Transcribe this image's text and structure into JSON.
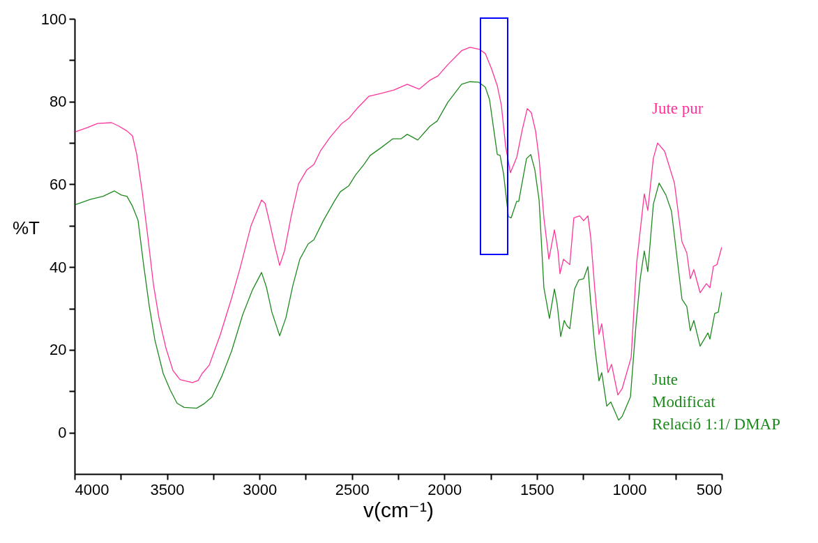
{
  "chart_data": {
    "type": "line",
    "xlabel": "v(cm⁻¹)",
    "ylabel": "%T",
    "xlim": [
      4000,
      500
    ],
    "ylim": [
      -10,
      100
    ],
    "xticks": [
      4000,
      {
        "value": 3750,
        "label": null
      },
      3500,
      {
        "value": 3250,
        "label": null
      },
      3000,
      {
        "value": 2750,
        "label": null
      },
      2500,
      {
        "value": 2250,
        "label": null
      },
      2000,
      {
        "value": 1750,
        "label": null
      },
      1500,
      {
        "value": 1250,
        "label": null
      },
      1000,
      {
        "value": 750,
        "label": null
      },
      500
    ],
    "yticks": [
      0,
      {
        "value": 10,
        "label": null
      },
      20,
      {
        "value": 30,
        "label": null
      },
      40,
      {
        "value": 50,
        "label": null
      },
      60,
      {
        "value": 70,
        "label": null
      },
      80,
      {
        "value": 90,
        "label": null
      },
      100
    ],
    "grid": false,
    "series": [
      {
        "name": "Jute pur",
        "color": "#ff3399",
        "x": [
          3996,
          3932,
          3876,
          3800,
          3762,
          3717,
          3687,
          3664,
          3634,
          3604,
          3574,
          3544,
          3506,
          3468,
          3430,
          3363,
          3332,
          3310,
          3272,
          3212,
          3151,
          3106,
          3046,
          2989,
          2970,
          2948,
          2918,
          2891,
          2865,
          2827,
          2789,
          2744,
          2706,
          2669,
          2616,
          2555,
          2518,
          2473,
          2408,
          2341,
          2273,
          2201,
          2137,
          2077,
          2035,
          1982,
          1907,
          1862,
          1809,
          1779,
          1745,
          1714,
          1692,
          1669,
          1643,
          1609,
          1579,
          1552,
          1530,
          1507,
          1488,
          1462,
          1435,
          1405,
          1386,
          1375,
          1356,
          1322,
          1300,
          1269,
          1247,
          1224,
          1209,
          1186,
          1164,
          1149,
          1115,
          1096,
          1062,
          1039,
          990,
          960,
          919,
          900,
          870,
          847,
          809,
          756,
          715,
          689,
          670,
          651,
          617,
          583,
          564,
          545,
          526,
          500
        ],
        "values": [
          72.7,
          73.7,
          74.7,
          74.9,
          74.1,
          72.9,
          71.7,
          67.2,
          58.1,
          47.3,
          35.9,
          27.8,
          20.4,
          15.0,
          12.8,
          12.1,
          12.6,
          14.3,
          16.3,
          23.7,
          32.5,
          39.6,
          50.0,
          56.2,
          55.4,
          51.3,
          45.3,
          40.4,
          43.9,
          52.7,
          60.1,
          63.5,
          64.8,
          68.2,
          71.5,
          74.7,
          75.9,
          78.3,
          81.3,
          82.0,
          82.8,
          84.2,
          83.0,
          85.2,
          86.2,
          88.9,
          92.3,
          93.1,
          92.6,
          91.6,
          87.9,
          83.8,
          79.1,
          69.2,
          62.8,
          66.5,
          73.2,
          78.3,
          77.3,
          72.9,
          66.3,
          51.9,
          41.9,
          49.0,
          43.9,
          38.4,
          41.9,
          40.6,
          51.9,
          52.4,
          51.2,
          52.4,
          47.3,
          34.3,
          23.7,
          26.3,
          14.5,
          16.5,
          9.1,
          10.6,
          18.2,
          41.1,
          57.7,
          53.7,
          66.3,
          70.0,
          68.0,
          60.3,
          46.1,
          43.4,
          37.2,
          39.4,
          33.8,
          36.0,
          35.0,
          40.2,
          40.6,
          44.8
        ]
      },
      {
        "name": "Jute Modificat Relació 1:1/ DMAP",
        "color": "#1e8a1e",
        "x": [
          3996,
          3913,
          3846,
          3785,
          3747,
          3717,
          3687,
          3657,
          3627,
          3596,
          3566,
          3521,
          3483,
          3446,
          3408,
          3340,
          3302,
          3257,
          3204,
          3151,
          3091,
          3038,
          2989,
          2963,
          2933,
          2891,
          2857,
          2820,
          2782,
          2737,
          2706,
          2654,
          2593,
          2563,
          2518,
          2480,
          2435,
          2401,
          2341,
          2280,
          2235,
          2201,
          2144,
          2077,
          2039,
          1982,
          1907,
          1862,
          1816,
          1779,
          1756,
          1733,
          1714,
          1699,
          1680,
          1654,
          1639,
          1609,
          1598,
          1556,
          1533,
          1511,
          1488,
          1462,
          1432,
          1405,
          1390,
          1371,
          1352,
          1337,
          1322,
          1296,
          1273,
          1247,
          1224,
          1209,
          1186,
          1164,
          1149,
          1122,
          1100,
          1058,
          1039,
          994,
          964,
          941,
          919,
          900,
          870,
          839,
          802,
          772,
          715,
          689,
          670,
          651,
          617,
          575,
          564,
          538,
          519,
          500
        ],
        "values": [
          55.1,
          56.4,
          57.1,
          58.4,
          57.4,
          57.1,
          54.7,
          51.3,
          40.6,
          30.5,
          22.4,
          14.3,
          10.3,
          7.1,
          6.1,
          5.9,
          6.9,
          8.6,
          13.6,
          19.7,
          28.5,
          34.5,
          38.7,
          35.2,
          29.1,
          23.4,
          27.8,
          35.5,
          41.9,
          45.6,
          46.6,
          51.3,
          56.1,
          58.2,
          59.6,
          62.3,
          64.8,
          67.0,
          68.9,
          71.0,
          71.0,
          72.1,
          70.7,
          74.1,
          75.3,
          79.8,
          84.2,
          84.8,
          84.7,
          83.5,
          80.5,
          73.2,
          67.2,
          67.0,
          62.5,
          52.2,
          51.9,
          55.9,
          55.9,
          66.2,
          67.2,
          63.5,
          56.2,
          35.0,
          27.6,
          34.7,
          31.0,
          23.2,
          27.1,
          25.8,
          25.1,
          34.7,
          36.9,
          37.2,
          40.1,
          31.6,
          20.4,
          12.5,
          14.5,
          6.4,
          7.4,
          3.0,
          3.9,
          8.6,
          25.9,
          37.2,
          43.9,
          38.9,
          55.2,
          60.3,
          57.4,
          53.5,
          32.2,
          30.5,
          24.6,
          27.1,
          20.9,
          24.1,
          22.6,
          28.8,
          29.1,
          34.0
        ]
      }
    ]
  }
}
